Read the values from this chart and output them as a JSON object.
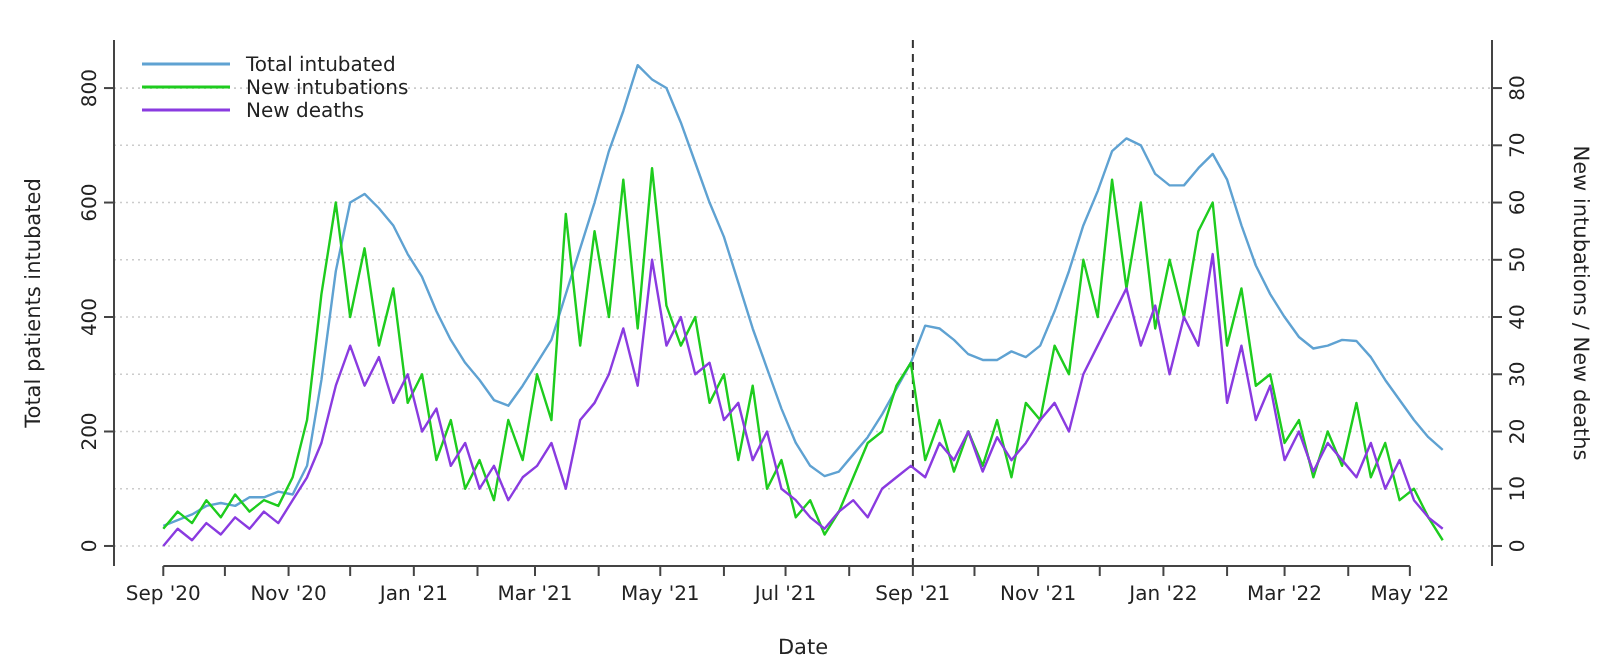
{
  "chart_data": {
    "type": "line",
    "xlabel": "Date",
    "ylabel": "Total patients intubated",
    "y2label": "New intubations / New deaths",
    "x": [
      "2020-09-01",
      "2020-09-08",
      "2020-09-15",
      "2020-09-22",
      "2020-09-29",
      "2020-10-06",
      "2020-10-13",
      "2020-10-20",
      "2020-10-27",
      "2020-11-03",
      "2020-11-10",
      "2020-11-17",
      "2020-11-24",
      "2020-12-01",
      "2020-12-08",
      "2020-12-15",
      "2020-12-22",
      "2020-12-29",
      "2021-01-05",
      "2021-01-12",
      "2021-01-19",
      "2021-01-26",
      "2021-02-02",
      "2021-02-09",
      "2021-02-16",
      "2021-02-23",
      "2021-03-02",
      "2021-03-09",
      "2021-03-16",
      "2021-03-23",
      "2021-03-30",
      "2021-04-06",
      "2021-04-13",
      "2021-04-20",
      "2021-04-27",
      "2021-05-04",
      "2021-05-11",
      "2021-05-18",
      "2021-05-25",
      "2021-06-01",
      "2021-06-08",
      "2021-06-15",
      "2021-06-22",
      "2021-06-29",
      "2021-07-06",
      "2021-07-13",
      "2021-07-20",
      "2021-07-27",
      "2021-08-03",
      "2021-08-10",
      "2021-08-17",
      "2021-08-24",
      "2021-08-31",
      "2021-09-07",
      "2021-09-14",
      "2021-09-21",
      "2021-09-28",
      "2021-10-05",
      "2021-10-12",
      "2021-10-19",
      "2021-10-26",
      "2021-11-02",
      "2021-11-09",
      "2021-11-16",
      "2021-11-23",
      "2021-11-30",
      "2021-12-07",
      "2021-12-14",
      "2021-12-21",
      "2021-12-28",
      "2022-01-04",
      "2022-01-11",
      "2022-01-18",
      "2022-01-25",
      "2022-02-01",
      "2022-02-08",
      "2022-02-15",
      "2022-02-22",
      "2022-03-01",
      "2022-03-08",
      "2022-03-15",
      "2022-03-22",
      "2022-03-29",
      "2022-04-05",
      "2022-04-12",
      "2022-04-19",
      "2022-04-26",
      "2022-05-03",
      "2022-05-10",
      "2022-05-17"
    ],
    "series": [
      {
        "name": "Total intubated",
        "color": "#5fa2d2",
        "values": [
          35,
          45,
          55,
          70,
          75,
          70,
          85,
          85,
          95,
          90,
          140,
          290,
          480,
          600,
          615,
          590,
          560,
          510,
          470,
          410,
          360,
          320,
          290,
          255,
          245,
          280,
          320,
          360,
          440,
          520,
          600,
          690,
          760,
          840,
          815,
          800,
          740,
          670,
          600,
          540,
          460,
          380,
          310,
          240,
          180,
          140,
          122,
          130,
          160,
          190,
          230,
          275,
          320,
          385,
          380,
          360,
          335,
          325,
          325,
          340,
          330,
          350,
          410,
          480,
          560,
          620,
          690,
          712,
          700,
          650,
          630,
          630,
          660,
          685,
          640,
          560,
          490,
          440,
          400,
          365,
          345,
          350,
          360,
          358,
          330,
          290,
          255,
          220,
          190,
          168
        ]
      },
      {
        "name": "New intubations",
        "color": "#1ecc1e",
        "axis": "y2",
        "values": [
          3,
          6,
          4,
          8,
          5,
          9,
          6,
          8,
          7,
          12,
          22,
          44,
          60,
          40,
          52,
          35,
          45,
          25,
          30,
          15,
          22,
          10,
          15,
          8,
          22,
          15,
          30,
          22,
          58,
          35,
          55,
          40,
          64,
          38,
          66,
          42,
          35,
          40,
          25,
          30,
          15,
          28,
          10,
          15,
          5,
          8,
          2,
          6,
          12,
          18,
          20,
          28,
          32,
          15,
          22,
          13,
          20,
          14,
          22,
          12,
          25,
          22,
          35,
          30,
          50,
          40,
          64,
          45,
          60,
          38,
          50,
          40,
          55,
          60,
          35,
          45,
          28,
          30,
          18,
          22,
          12,
          20,
          14,
          25,
          12,
          18,
          8,
          10,
          5,
          1
        ]
      },
      {
        "name": "New deaths",
        "color": "#8a3be0",
        "axis": "y2",
        "values": [
          0,
          3,
          1,
          4,
          2,
          5,
          3,
          6,
          4,
          8,
          12,
          18,
          28,
          35,
          28,
          33,
          25,
          30,
          20,
          24,
          14,
          18,
          10,
          14,
          8,
          12,
          14,
          18,
          10,
          22,
          25,
          30,
          38,
          28,
          50,
          35,
          40,
          30,
          32,
          22,
          25,
          15,
          20,
          10,
          8,
          5,
          3,
          6,
          8,
          5,
          10,
          12,
          14,
          12,
          18,
          15,
          20,
          13,
          19,
          15,
          18,
          22,
          25,
          20,
          30,
          35,
          40,
          45,
          35,
          42,
          30,
          40,
          35,
          51,
          25,
          35,
          22,
          28,
          15,
          20,
          13,
          18,
          15,
          12,
          18,
          10,
          15,
          8,
          5,
          3
        ]
      }
    ],
    "xlim": [
      "2020-08-08",
      "2022-06-10"
    ],
    "xticks": [
      {
        "value": "2020-09-01",
        "label": "Sep '20"
      },
      {
        "value": "2020-10-01",
        "label": null
      },
      {
        "value": "2020-11-01",
        "label": "Nov '20"
      },
      {
        "value": "2020-12-01",
        "label": null
      },
      {
        "value": "2021-01-01",
        "label": "Jan '21"
      },
      {
        "value": "2021-02-01",
        "label": null
      },
      {
        "value": "2021-03-01",
        "label": "Mar '21"
      },
      {
        "value": "2021-04-01",
        "label": null
      },
      {
        "value": "2021-05-01",
        "label": "May '21"
      },
      {
        "value": "2021-06-01",
        "label": null
      },
      {
        "value": "2021-07-01",
        "label": "Jul '21"
      },
      {
        "value": "2021-08-01",
        "label": null
      },
      {
        "value": "2021-09-01",
        "label": "Sep '21"
      },
      {
        "value": "2021-10-01",
        "label": null
      },
      {
        "value": "2021-11-01",
        "label": "Nov '21"
      },
      {
        "value": "2021-12-01",
        "label": null
      },
      {
        "value": "2022-01-01",
        "label": "Jan '22"
      },
      {
        "value": "2022-02-01",
        "label": null
      },
      {
        "value": "2022-03-01",
        "label": "Mar '22"
      },
      {
        "value": "2022-04-01",
        "label": null
      },
      {
        "value": "2022-05-01",
        "label": "May '22"
      }
    ],
    "ylim": [
      -35,
      884
    ],
    "yticks": [
      0,
      200,
      400,
      600,
      800
    ],
    "y2lim": [
      -3.5,
      88.4
    ],
    "y2ticks": [
      0,
      10,
      20,
      30,
      40,
      50,
      60,
      70,
      80
    ],
    "ref_lines": [
      {
        "axis": "x",
        "value": "2021-09-01",
        "color": "#333333",
        "line_style": "dashed"
      }
    ],
    "grid": "y",
    "legend": "top left",
    "line_style": "solid",
    "marker": "none"
  }
}
